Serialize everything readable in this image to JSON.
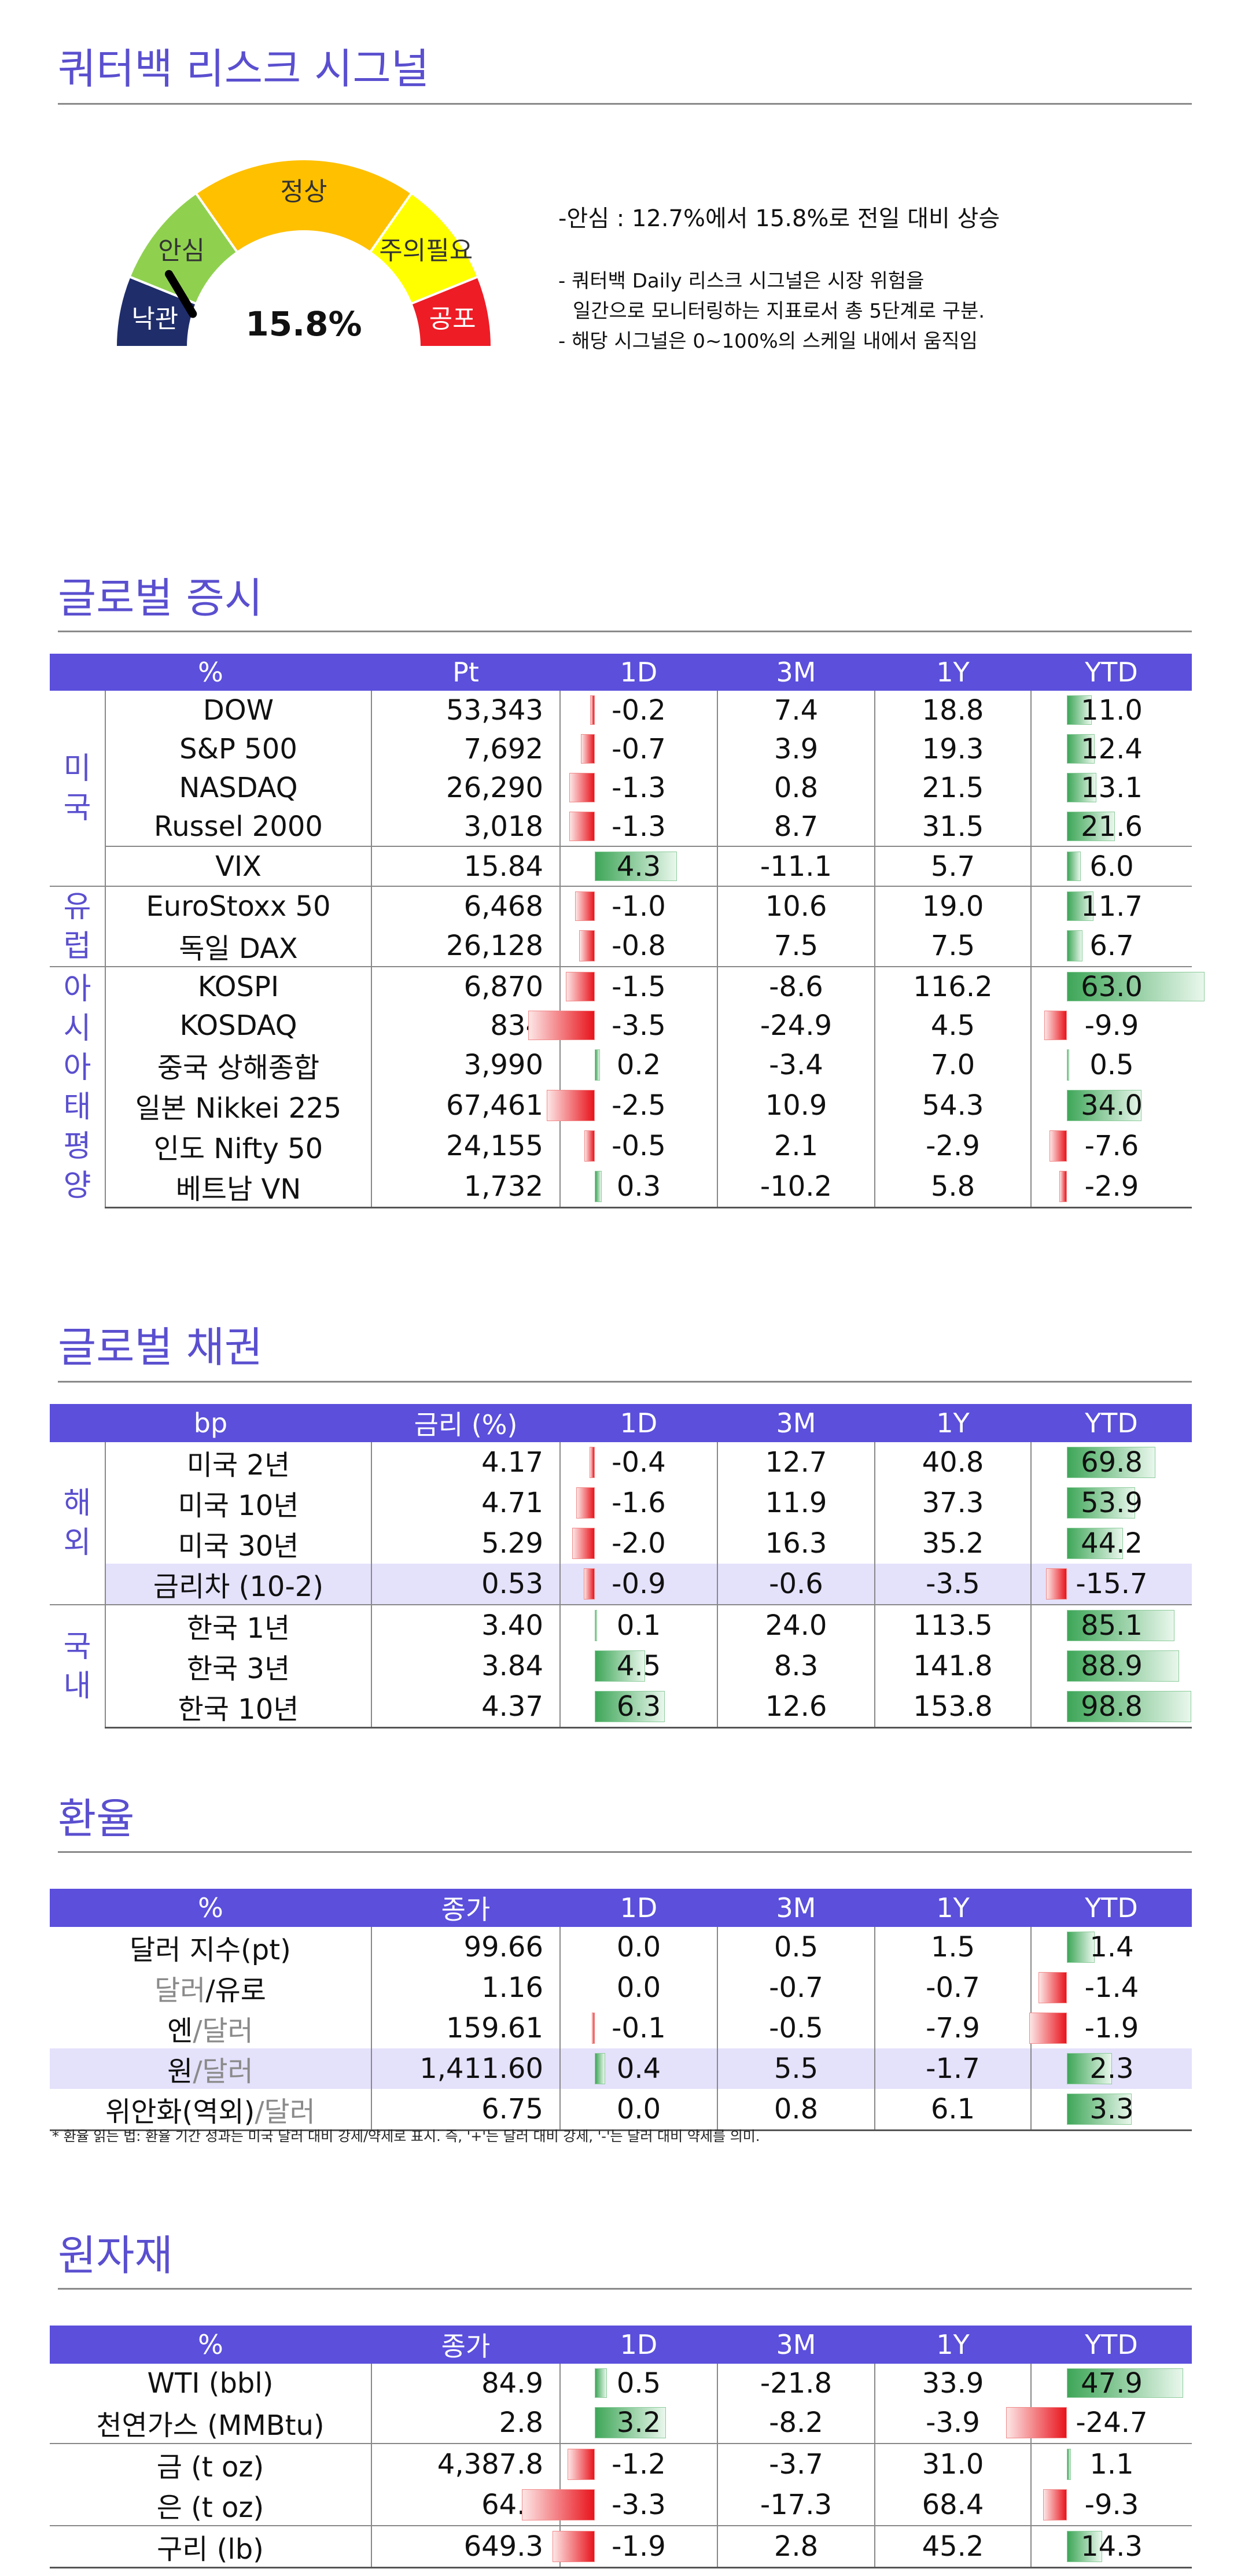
{
  "risk": {
    "title": "쿼터백 리스크 시그널",
    "gauge_value": "15.8%",
    "gauge_percent": 15.8,
    "zones": [
      "낙관",
      "안심",
      "정상",
      "주의필요",
      "공포"
    ],
    "headline": "-안심 : 12.7%에서 15.8%로 전일 대비 상승",
    "note1a": "- 쿼터백 Daily 리스크 시그널은 시장 위험을",
    "note1b": "일간으로 모니터링하는 지표로서 총 5단계로 구분.",
    "note2": "- 해당 시그널은 0~100%의 스케일 내에서 움직임"
  },
  "colors": {
    "accent": "#5a4fcf",
    "header": "#5b4fdc",
    "positive": "#3ea658",
    "negative": "#e8141c",
    "zone_colors": [
      "#1f2d6b",
      "#8fd14f",
      "#ffc000",
      "#ffff00",
      "#ee1c25"
    ]
  },
  "equity": {
    "title": "글로벌 증시",
    "headers": [
      "%",
      "Pt",
      "1D",
      "3M",
      "1Y",
      "YTD"
    ],
    "groups": [
      {
        "label": "미\n국",
        "rows": [
          {
            "name": "DOW",
            "value": "53,343",
            "d1": "-0.2",
            "m3": "7.4",
            "y1": "18.8",
            "ytd": "11.0"
          },
          {
            "name": "S&P 500",
            "value": "7,692",
            "d1": "-0.7",
            "m3": "3.9",
            "y1": "19.3",
            "ytd": "12.4"
          },
          {
            "name": "NASDAQ",
            "value": "26,290",
            "d1": "-1.3",
            "m3": "0.8",
            "y1": "21.5",
            "ytd": "13.1"
          },
          {
            "name": "Russel 2000",
            "value": "3,018",
            "d1": "-1.3",
            "m3": "8.7",
            "y1": "31.5",
            "ytd": "21.6"
          },
          {
            "name": "VIX",
            "value": "15.84",
            "d1": "4.3",
            "m3": "-11.1",
            "y1": "5.7",
            "ytd": "6.0",
            "topline": true
          }
        ]
      },
      {
        "label": "유\n럽",
        "rows": [
          {
            "name": "EuroStoxx 50",
            "value": "6,468",
            "d1": "-1.0",
            "m3": "10.6",
            "y1": "19.0",
            "ytd": "11.7"
          },
          {
            "name": "독일 DAX",
            "value": "26,128",
            "d1": "-0.8",
            "m3": "7.5",
            "y1": "7.5",
            "ytd": "6.7"
          }
        ]
      },
      {
        "label": "아\n시\n아\n태\n평\n양",
        "rows": [
          {
            "name": "KOSPI",
            "value": "6,870",
            "d1": "-1.5",
            "m3": "-8.6",
            "y1": "116.2",
            "ytd": "63.0"
          },
          {
            "name": "KOSDAQ",
            "value": "834",
            "d1": "-3.5",
            "m3": "-24.9",
            "y1": "4.5",
            "ytd": "-9.9"
          },
          {
            "name": "중국 상해종합",
            "value": "3,990",
            "d1": "0.2",
            "m3": "-3.4",
            "y1": "7.0",
            "ytd": "0.5"
          },
          {
            "name": "일본 Nikkei 225",
            "value": "67,461",
            "d1": "-2.5",
            "m3": "10.9",
            "y1": "54.3",
            "ytd": "34.0"
          },
          {
            "name": "인도 Nifty 50",
            "value": "24,155",
            "d1": "-0.5",
            "m3": "2.1",
            "y1": "-2.9",
            "ytd": "-7.6"
          },
          {
            "name": "베트남 VN",
            "value": "1,732",
            "d1": "0.3",
            "m3": "-10.2",
            "y1": "5.8",
            "ytd": "-2.9"
          }
        ]
      }
    ]
  },
  "bonds": {
    "title": "글로벌 채권",
    "headers": [
      "bp",
      "금리 (%)",
      "1D",
      "3M",
      "1Y",
      "YTD"
    ],
    "groups": [
      {
        "label": "해\n외",
        "rows": [
          {
            "name": "미국 2년",
            "value": "4.17",
            "d1": "-0.4",
            "m3": "12.7",
            "y1": "40.8",
            "ytd": "69.8"
          },
          {
            "name": "미국 10년",
            "value": "4.71",
            "d1": "-1.6",
            "m3": "11.9",
            "y1": "37.3",
            "ytd": "53.9"
          },
          {
            "name": "미국 30년",
            "value": "5.29",
            "d1": "-2.0",
            "m3": "16.3",
            "y1": "35.2",
            "ytd": "44.2"
          },
          {
            "name": "금리차 (10-2)",
            "value": "0.53",
            "d1": "-0.9",
            "m3": "-0.6",
            "y1": "-3.5",
            "ytd": "-15.7",
            "highlight": true
          }
        ]
      },
      {
        "label": "국\n내",
        "rows": [
          {
            "name": "한국 1년",
            "value": "3.40",
            "d1": "0.1",
            "m3": "24.0",
            "y1": "113.5",
            "ytd": "85.1"
          },
          {
            "name": "한국 3년",
            "value": "3.84",
            "d1": "4.5",
            "m3": "8.3",
            "y1": "141.8",
            "ytd": "88.9"
          },
          {
            "name": "한국 10년",
            "value": "4.37",
            "d1": "6.3",
            "m3": "12.6",
            "y1": "153.8",
            "ytd": "98.8"
          }
        ]
      }
    ]
  },
  "fx": {
    "title": "환율",
    "headers": [
      "%",
      "종가",
      "1D",
      "3M",
      "1Y",
      "YTD"
    ],
    "rows": [
      {
        "name": "달러 지수(pt)",
        "value": "99.66",
        "d1": "0.0",
        "m3": "0.5",
        "y1": "1.5",
        "ytd": "1.4"
      },
      {
        "name_a": "달러",
        "name_b": "/유로",
        "gray": "a",
        "value": "1.16",
        "d1": "0.0",
        "m3": "-0.7",
        "y1": "-0.7",
        "ytd": "-1.4"
      },
      {
        "name_a": "엔",
        "name_b": "/달러",
        "gray": "b",
        "value": "159.61",
        "d1": "-0.1",
        "m3": "-0.5",
        "y1": "-7.9",
        "ytd": "-1.9"
      },
      {
        "name_a": "원",
        "name_b": "/달러",
        "gray": "b",
        "value": "1,411.60",
        "d1": "0.4",
        "m3": "5.5",
        "y1": "-1.7",
        "ytd": "2.3",
        "highlight": true
      },
      {
        "name_a": "위안화(역외)",
        "name_b": "/달러",
        "gray": "b",
        "value": "6.75",
        "d1": "0.0",
        "m3": "0.8",
        "y1": "6.1",
        "ytd": "3.3"
      }
    ],
    "footnote": "* 환율 읽는 법: 환율 기간 성과는 미국 달러 대비 강세/약세로 표시. 즉, '+'는 달러 대비 강세, '-'는 달러 대비 약세를 의미."
  },
  "commodities": {
    "title": "원자재",
    "headers": [
      "%",
      "종가",
      "1D",
      "3M",
      "1Y",
      "YTD"
    ],
    "rows": [
      {
        "name": "WTI (bbl)",
        "value": "84.9",
        "d1": "0.5",
        "m3": "-21.8",
        "y1": "33.9",
        "ytd": "47.9"
      },
      {
        "name": "천연가스 (MMBtu)",
        "value": "2.8",
        "d1": "3.2",
        "m3": "-8.2",
        "y1": "-3.9",
        "ytd": "-24.7"
      },
      {
        "name": "금 (t oz)",
        "value": "4,387.8",
        "d1": "-1.2",
        "m3": "-3.7",
        "y1": "31.0",
        "ytd": "1.1",
        "topline": true
      },
      {
        "name": "은 (t oz)",
        "value": "64.0",
        "d1": "-3.3",
        "m3": "-17.3",
        "y1": "68.4",
        "ytd": "-9.3"
      },
      {
        "name": "구리 (lb)",
        "value": "649.3",
        "d1": "-1.9",
        "m3": "2.8",
        "y1": "45.2",
        "ytd": "14.3",
        "topline": true
      }
    ]
  }
}
